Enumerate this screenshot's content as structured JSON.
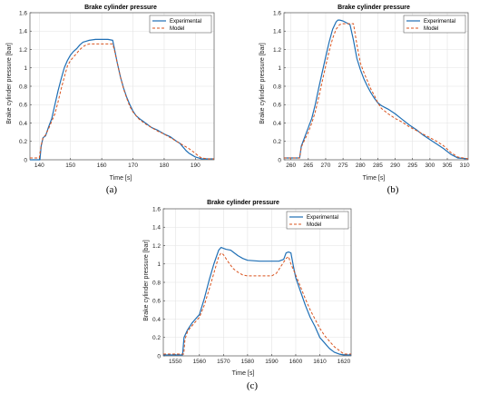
{
  "chart_data": [
    {
      "type": "line",
      "panel_label": "(a)",
      "title": "Brake cylinder pressure",
      "xlabel": "Time [s]",
      "ylabel": "Brake cylinder pressure [bar]",
      "xlim": [
        137,
        196
      ],
      "ylim": [
        0,
        1.6
      ],
      "xticks": [
        "140",
        "150",
        "160",
        "170",
        "180",
        "190"
      ],
      "yticks": [
        "0",
        "0.2",
        "0.4",
        "0.6",
        "0.8",
        "1",
        "1.2",
        "1.4",
        "1.6"
      ],
      "grid": true,
      "legend_position": "top-right",
      "series": [
        {
          "name": "Experimental",
          "color": "#1f6fb5",
          "dash": "solid",
          "x": [
            137,
            140.2,
            140.6,
            141.2,
            142,
            143,
            144,
            145,
            146,
            147,
            148,
            149,
            150,
            151,
            152,
            153,
            154,
            155,
            156,
            157,
            158,
            160,
            162,
            163.5,
            164,
            165,
            166,
            167,
            168,
            169,
            170,
            171,
            172,
            174,
            176,
            178,
            180,
            182,
            184,
            185,
            186,
            187,
            188,
            189,
            190,
            191,
            192,
            196
          ],
          "y": [
            0,
            0,
            0.15,
            0.24,
            0.26,
            0.36,
            0.45,
            0.6,
            0.75,
            0.88,
            1.0,
            1.08,
            1.14,
            1.18,
            1.21,
            1.25,
            1.28,
            1.29,
            1.3,
            1.305,
            1.31,
            1.31,
            1.31,
            1.3,
            1.22,
            1.05,
            0.9,
            0.78,
            0.68,
            0.6,
            0.53,
            0.48,
            0.45,
            0.4,
            0.35,
            0.32,
            0.28,
            0.25,
            0.2,
            0.18,
            0.14,
            0.1,
            0.07,
            0.05,
            0.03,
            0.02,
            0.01,
            0.01
          ]
        },
        {
          "name": "Model",
          "color": "#d9531e",
          "dash": "dashed",
          "x": [
            137,
            140,
            140.6,
            141.2,
            142,
            143,
            144,
            145,
            146,
            147,
            148,
            149,
            150,
            151,
            152,
            153,
            154,
            155,
            156,
            157,
            158,
            160,
            162,
            163.5,
            164,
            165,
            166,
            167,
            168,
            169,
            170,
            171,
            172,
            174,
            176,
            178,
            180,
            182,
            184,
            186,
            188,
            190,
            191,
            192,
            194,
            196
          ],
          "y": [
            0.02,
            0.02,
            0.16,
            0.24,
            0.27,
            0.34,
            0.42,
            0.5,
            0.63,
            0.77,
            0.9,
            1.02,
            1.08,
            1.12,
            1.16,
            1.2,
            1.23,
            1.25,
            1.26,
            1.26,
            1.26,
            1.26,
            1.26,
            1.26,
            1.2,
            1.05,
            0.9,
            0.77,
            0.67,
            0.58,
            0.52,
            0.48,
            0.44,
            0.39,
            0.35,
            0.31,
            0.28,
            0.24,
            0.2,
            0.16,
            0.12,
            0.07,
            0.04,
            0.02,
            0.01,
            0.01
          ]
        }
      ]
    },
    {
      "type": "line",
      "panel_label": "(b)",
      "title": "Brake cylinder pressure",
      "xlabel": "Time [s]",
      "ylabel": "Brake cylinder pressure [bar]",
      "xlim": [
        258,
        311
      ],
      "ylim": [
        0,
        1.6
      ],
      "xticks": [
        "260",
        "265",
        "270",
        "275",
        "280",
        "285",
        "290",
        "295",
        "300",
        "305",
        "310"
      ],
      "yticks": [
        "0",
        "0.2",
        "0.4",
        "0.6",
        "0.8",
        "1",
        "1.2",
        "1.4",
        "1.6"
      ],
      "grid": true,
      "legend_position": "top-right",
      "series": [
        {
          "name": "Experimental",
          "color": "#1f6fb5",
          "dash": "solid",
          "x": [
            258,
            262.5,
            263,
            264,
            265,
            266,
            267,
            268,
            269,
            270,
            271,
            272,
            273,
            273.5,
            274,
            275,
            276,
            277,
            278,
            279,
            280,
            281,
            282,
            283,
            284,
            285,
            286,
            287,
            288,
            290,
            292,
            294,
            296,
            298,
            300,
            302,
            304,
            306,
            308,
            311
          ],
          "y": [
            0.02,
            0.02,
            0.15,
            0.25,
            0.35,
            0.45,
            0.6,
            0.78,
            0.95,
            1.12,
            1.28,
            1.42,
            1.5,
            1.52,
            1.52,
            1.51,
            1.49,
            1.47,
            1.3,
            1.1,
            0.98,
            0.88,
            0.8,
            0.73,
            0.67,
            0.62,
            0.59,
            0.57,
            0.55,
            0.5,
            0.44,
            0.38,
            0.33,
            0.27,
            0.22,
            0.17,
            0.12,
            0.06,
            0.02,
            0.01
          ]
        },
        {
          "name": "Model",
          "color": "#d9531e",
          "dash": "dashed",
          "x": [
            258,
            262.5,
            263,
            264,
            265,
            266,
            267,
            268,
            269,
            270,
            271,
            272,
            273,
            274,
            275,
            276,
            277,
            278,
            279,
            280,
            281,
            282,
            283,
            284,
            285,
            286,
            288,
            290,
            292,
            294,
            296,
            298,
            300,
            302,
            304,
            306,
            308,
            311
          ],
          "y": [
            0.02,
            0.02,
            0.14,
            0.22,
            0.3,
            0.4,
            0.52,
            0.68,
            0.85,
            1.02,
            1.18,
            1.32,
            1.42,
            1.47,
            1.48,
            1.48,
            1.48,
            1.48,
            1.25,
            1.05,
            0.95,
            0.86,
            0.77,
            0.7,
            0.62,
            0.56,
            0.5,
            0.45,
            0.41,
            0.36,
            0.32,
            0.28,
            0.24,
            0.2,
            0.15,
            0.08,
            0.03,
            0.01
          ]
        }
      ]
    },
    {
      "type": "line",
      "panel_label": "(c)",
      "title": "Brake cylinder pressure",
      "xlabel": "Time [s]",
      "ylabel": "Brake cylinder pressure [bar]",
      "xlim": [
        1545,
        1623
      ],
      "ylim": [
        0,
        1.6
      ],
      "xticks": [
        "1550",
        "1560",
        "1570",
        "1580",
        "1590",
        "1600",
        "1610",
        "1620"
      ],
      "yticks": [
        "0",
        "0.2",
        "0.4",
        "0.6",
        "0.8",
        "1",
        "1.2",
        "1.4",
        "1.6"
      ],
      "grid": true,
      "legend_position": "top-right",
      "series": [
        {
          "name": "Experimental",
          "color": "#1f6fb5",
          "dash": "solid",
          "x": [
            1545,
            1553,
            1553.6,
            1555,
            1556,
            1557,
            1558,
            1560,
            1562,
            1564,
            1566,
            1568,
            1569,
            1571,
            1573,
            1574,
            1576,
            1578,
            1580,
            1585,
            1590,
            1593,
            1595,
            1596,
            1597,
            1598,
            1599,
            1600,
            1602,
            1604,
            1606,
            1608,
            1610,
            1612,
            1614,
            1616,
            1618,
            1620,
            1623
          ],
          "y": [
            0.01,
            0.01,
            0.2,
            0.28,
            0.32,
            0.36,
            0.39,
            0.45,
            0.62,
            0.82,
            1.0,
            1.15,
            1.18,
            1.16,
            1.15,
            1.13,
            1.09,
            1.06,
            1.04,
            1.03,
            1.03,
            1.03,
            1.05,
            1.12,
            1.13,
            1.12,
            0.98,
            0.85,
            0.7,
            0.55,
            0.42,
            0.32,
            0.2,
            0.14,
            0.08,
            0.04,
            0.02,
            0.01,
            0.01
          ]
        },
        {
          "name": "Model",
          "color": "#d9531e",
          "dash": "dashed",
          "x": [
            1545,
            1553.5,
            1554,
            1555,
            1556,
            1558,
            1560,
            1562,
            1564,
            1566,
            1568,
            1569,
            1570,
            1572,
            1574,
            1576,
            1578,
            1580,
            1584,
            1588,
            1590,
            1592,
            1594,
            1596,
            1597,
            1598,
            1600,
            1602,
            1604,
            1606,
            1608,
            1610,
            1612,
            1614,
            1616,
            1618,
            1620,
            1623
          ],
          "y": [
            0.02,
            0.02,
            0.18,
            0.26,
            0.3,
            0.36,
            0.42,
            0.55,
            0.72,
            0.9,
            1.08,
            1.12,
            1.1,
            1.02,
            0.95,
            0.91,
            0.88,
            0.87,
            0.87,
            0.87,
            0.87,
            0.9,
            0.98,
            1.06,
            1.08,
            1.0,
            0.88,
            0.75,
            0.62,
            0.5,
            0.4,
            0.3,
            0.22,
            0.16,
            0.1,
            0.06,
            0.02,
            0.02
          ]
        }
      ]
    }
  ]
}
